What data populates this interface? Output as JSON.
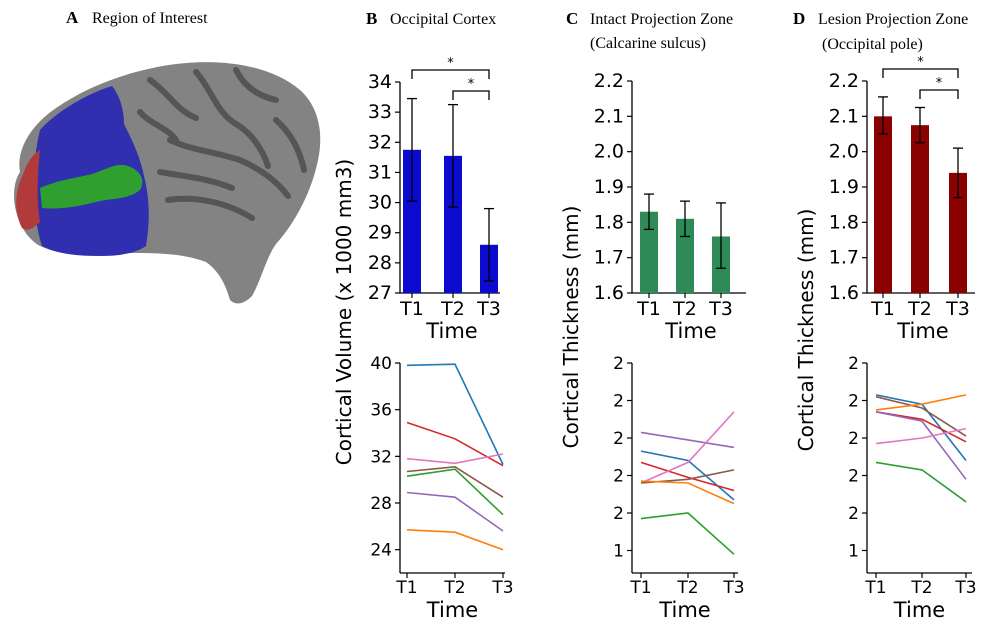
{
  "panels": {
    "A": {
      "letter": "A",
      "title": "Region of Interest"
    },
    "B": {
      "letter": "B",
      "title": "Occipital Cortex"
    },
    "C": {
      "letter": "C",
      "title_line1": "Intact Projection Zone",
      "title_line2": "(Calcarine sulcus)"
    },
    "D": {
      "letter": "D",
      "title_line1": "Lesion Projection Zone",
      "title_line2": "(Occipital pole)"
    }
  },
  "shared": {
    "ylabel_volume": "Cortical Volume (x 1000 mm3)",
    "ylabel_thickness": "Cortical Thickness (mm)",
    "xlabel": "Time",
    "sig_marker": "*"
  },
  "brain_colors": {
    "cortex": "#838383",
    "sulci": "#555555",
    "occipital": "#2f2fb0",
    "calcarine": "#2fa02f",
    "pole": "#b33a3a"
  },
  "chart_data": [
    {
      "id": "B-bar",
      "type": "bar",
      "panel": "B",
      "categories": [
        "T1",
        "T2",
        "T3"
      ],
      "values": [
        31.75,
        31.55,
        28.6
      ],
      "err_lo": [
        30.05,
        29.85,
        27.4
      ],
      "err_hi": [
        33.45,
        33.25,
        29.8
      ],
      "ylim": [
        27,
        34
      ],
      "yticks": [
        27,
        28,
        29,
        30,
        31,
        32,
        33,
        34
      ],
      "xlabel": "Time",
      "color": "#0b0bd0",
      "significance": [
        {
          "from": 0,
          "to": 2,
          "label": "*"
        },
        {
          "from": 1,
          "to": 2,
          "label": "*"
        }
      ]
    },
    {
      "id": "C-bar",
      "type": "bar",
      "panel": "C",
      "categories": [
        "T1",
        "T2",
        "T3"
      ],
      "values": [
        1.83,
        1.81,
        1.76
      ],
      "err_lo": [
        1.78,
        1.76,
        1.67
      ],
      "err_hi": [
        1.88,
        1.86,
        1.855
      ],
      "ylim": [
        1.6,
        2.2
      ],
      "yticks": [
        1.6,
        1.7,
        1.8,
        1.9,
        2.0,
        2.1,
        2.2
      ],
      "xlabel": "Time",
      "color": "#2e8b57",
      "significance": []
    },
    {
      "id": "D-bar",
      "type": "bar",
      "panel": "D",
      "categories": [
        "T1",
        "T2",
        "T3"
      ],
      "values": [
        2.1,
        2.075,
        1.94
      ],
      "err_lo": [
        2.05,
        2.025,
        1.87
      ],
      "err_hi": [
        2.155,
        2.125,
        2.01
      ],
      "ylim": [
        1.6,
        2.2
      ],
      "yticks": [
        1.6,
        1.7,
        1.8,
        1.9,
        2.0,
        2.1,
        2.2
      ],
      "xlabel": "Time",
      "color": "#8b0000",
      "significance": [
        {
          "from": 0,
          "to": 2,
          "label": "*"
        },
        {
          "from": 1,
          "to": 2,
          "label": "*"
        }
      ]
    },
    {
      "id": "B-line",
      "type": "line",
      "panel": "B",
      "x": [
        "T1",
        "T2",
        "T3"
      ],
      "ylim": [
        22,
        40
      ],
      "yticks": [
        24,
        28,
        32,
        36,
        40
      ],
      "xlabel": "Time",
      "series": [
        {
          "color": "#1f77b4",
          "values": [
            39.8,
            39.9,
            31.3
          ]
        },
        {
          "color": "#d62728",
          "values": [
            34.9,
            33.5,
            31.2
          ]
        },
        {
          "color": "#e377c2",
          "values": [
            31.8,
            31.4,
            32.2
          ]
        },
        {
          "color": "#8c564b",
          "values": [
            30.7,
            31.1,
            28.5
          ]
        },
        {
          "color": "#2ca02c",
          "values": [
            30.3,
            30.9,
            27.0
          ]
        },
        {
          "color": "#9467bd",
          "values": [
            28.9,
            28.5,
            25.6
          ]
        },
        {
          "color": "#ff7f0e",
          "values": [
            25.7,
            25.5,
            24.0
          ]
        }
      ]
    },
    {
      "id": "C-line",
      "type": "line",
      "panel": "C",
      "x": [
        "T1",
        "T2",
        "T3"
      ],
      "ylim": [
        1.28,
        2.4
      ],
      "yticks": [
        1.4,
        1.6,
        1.8,
        2.0,
        2.2,
        2.4
      ],
      "xlabel": "Time",
      "series": [
        {
          "color": "#9467bd",
          "values": [
            2.03,
            1.99,
            1.95
          ]
        },
        {
          "color": "#1f77b4",
          "values": [
            1.93,
            1.88,
            1.67
          ]
        },
        {
          "color": "#d62728",
          "values": [
            1.87,
            1.79,
            1.72
          ]
        },
        {
          "color": "#e377c2",
          "values": [
            1.76,
            1.87,
            2.14
          ]
        },
        {
          "color": "#8c564b",
          "values": [
            1.76,
            1.78,
            1.83
          ]
        },
        {
          "color": "#ff7f0e",
          "values": [
            1.77,
            1.76,
            1.65
          ]
        },
        {
          "color": "#2ca02c",
          "values": [
            1.57,
            1.6,
            1.38
          ]
        }
      ]
    },
    {
      "id": "D-line",
      "type": "line",
      "panel": "D",
      "x": [
        "T1",
        "T2",
        "T3"
      ],
      "ylim": [
        1.28,
        2.4
      ],
      "yticks": [
        1.4,
        1.6,
        1.8,
        2.0,
        2.2,
        2.4
      ],
      "xlabel": "Time",
      "series": [
        {
          "color": "#1f77b4",
          "values": [
            2.23,
            2.18,
            1.88
          ]
        },
        {
          "color": "#8c564b",
          "values": [
            2.22,
            2.16,
            2.01
          ]
        },
        {
          "color": "#ff7f0e",
          "values": [
            2.15,
            2.18,
            2.23
          ]
        },
        {
          "color": "#d62728",
          "values": [
            2.14,
            2.1,
            1.98
          ]
        },
        {
          "color": "#9467bd",
          "values": [
            2.14,
            2.09,
            1.78
          ]
        },
        {
          "color": "#e377c2",
          "values": [
            1.97,
            2.0,
            2.05
          ]
        },
        {
          "color": "#2ca02c",
          "values": [
            1.87,
            1.83,
            1.66
          ]
        }
      ]
    }
  ]
}
